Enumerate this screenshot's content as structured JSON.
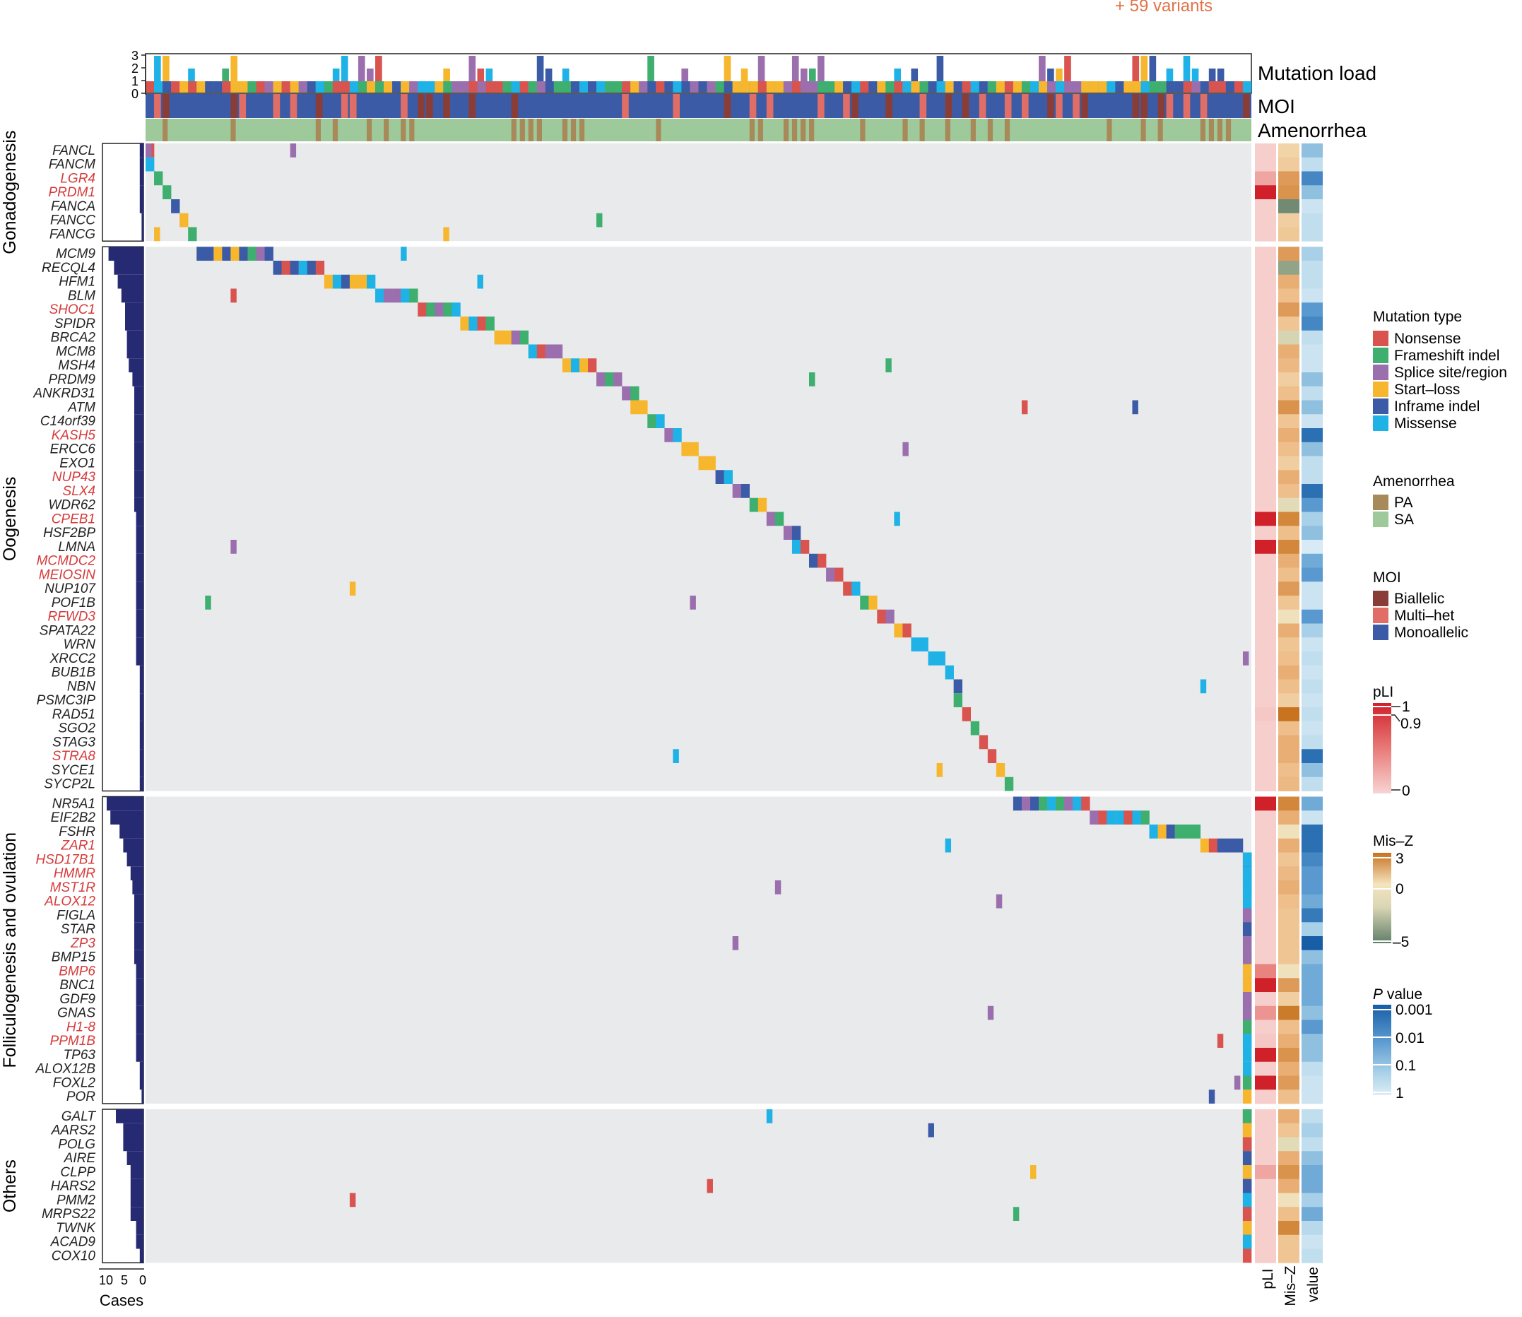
{
  "chart_data": {
    "type": "heatmap",
    "top_note": "+ 59 variants",
    "tracks": {
      "mutation_load": "Mutation load",
      "moi": "MOI",
      "amenorrhea": "Amenorrhea",
      "load_ticks": [
        "3",
        "2",
        "1",
        "0"
      ]
    },
    "cases_axis": {
      "label": "Cases",
      "ticks": [
        "10",
        "5",
        "0"
      ]
    },
    "right_columns": [
      "pLI",
      "Mis–Z",
      "value"
    ],
    "groups": [
      {
        "name": "Gonadogenesis",
        "genes": [
          {
            "name": "FANCL",
            "red": false,
            "cases": 1,
            "pli": 0.1,
            "misz": 0.3,
            "p": 0.05
          },
          {
            "name": "FANCM",
            "red": false,
            "cases": 1,
            "pli": 0.1,
            "misz": 0.6,
            "p": 0.3
          },
          {
            "name": "LGR4",
            "red": true,
            "cases": 1,
            "pli": 0.6,
            "misz": 2.0,
            "p": 0.005
          },
          {
            "name": "PRDM1",
            "red": true,
            "cases": 1,
            "pli": 1.0,
            "misz": 2.2,
            "p": 0.05
          },
          {
            "name": "FANCA",
            "red": false,
            "cases": 1,
            "pli": 0.1,
            "misz": -4.5,
            "p": 0.5
          },
          {
            "name": "FANCC",
            "red": false,
            "cases": 0.5,
            "pli": 0.1,
            "misz": 0.5,
            "p": 0.3
          },
          {
            "name": "FANCG",
            "red": false,
            "cases": 0.5,
            "pli": 0.1,
            "misz": 0.7,
            "p": 0.3
          }
        ]
      },
      {
        "name": "Oogenesis",
        "genes": [
          {
            "name": "MCM9",
            "red": false,
            "cases": 9.5,
            "pli": 0.1,
            "misz": 2.0,
            "p": 0.1
          },
          {
            "name": "RECQL4",
            "red": false,
            "cases": 8,
            "pli": 0.1,
            "misz": -3.5,
            "p": 0.3
          },
          {
            "name": "HFM1",
            "red": false,
            "cases": 7,
            "pli": 0.1,
            "misz": 1.5,
            "p": 0.3
          },
          {
            "name": "BLM",
            "red": false,
            "cases": 6,
            "pli": 0.1,
            "misz": 1.0,
            "p": 0.5
          },
          {
            "name": "SHOC1",
            "red": true,
            "cases": 5,
            "pli": 0.1,
            "misz": 2.0,
            "p": 0.01
          },
          {
            "name": "SPIDR",
            "red": false,
            "cases": 5,
            "pli": 0.1,
            "misz": 0.8,
            "p": 0.005
          },
          {
            "name": "BRCA2",
            "red": false,
            "cases": 4.5,
            "pli": 0.1,
            "misz": -1.5,
            "p": 0.3
          },
          {
            "name": "MCM8",
            "red": false,
            "cases": 4.5,
            "pli": 0.1,
            "misz": 1.5,
            "p": 0.5
          },
          {
            "name": "MSH4",
            "red": false,
            "cases": 4,
            "pli": 0.1,
            "misz": 1.2,
            "p": 0.5
          },
          {
            "name": "PRDM9",
            "red": false,
            "cases": 3,
            "pli": 0.1,
            "misz": 0.5,
            "p": 0.05
          },
          {
            "name": "ANKRD31",
            "red": false,
            "cases": 2.5,
            "pli": 0.1,
            "misz": 1.0,
            "p": 0.3
          },
          {
            "name": "ATM",
            "red": false,
            "cases": 2.5,
            "pli": 0.1,
            "misz": 2.2,
            "p": 0.05
          },
          {
            "name": "C14orf39",
            "red": false,
            "cases": 2.5,
            "pli": 0.1,
            "misz": 0.8,
            "p": 0.5
          },
          {
            "name": "KASH5",
            "red": true,
            "cases": 2.5,
            "pli": 0.1,
            "misz": 1.5,
            "p": 0.002
          },
          {
            "name": "ERCC6",
            "red": false,
            "cases": 2.5,
            "pli": 0.1,
            "misz": 1.0,
            "p": 0.05
          },
          {
            "name": "EXO1",
            "red": false,
            "cases": 2.5,
            "pli": 0.1,
            "misz": 0.5,
            "p": 0.3
          },
          {
            "name": "NUP43",
            "red": true,
            "cases": 2.5,
            "pli": 0.1,
            "misz": 1.5,
            "p": 0.3
          },
          {
            "name": "SLX4",
            "red": true,
            "cases": 2.5,
            "pli": 0.1,
            "misz": 1.0,
            "p": 0.002
          },
          {
            "name": "WDR62",
            "red": false,
            "cases": 2.5,
            "pli": 0.1,
            "misz": -1.0,
            "p": 0.01
          },
          {
            "name": "CPEB1",
            "red": true,
            "cases": 2,
            "pli": 1.0,
            "misz": 2.5,
            "p": 0.1
          },
          {
            "name": "HSF2BP",
            "red": false,
            "cases": 2,
            "pli": 0.1,
            "misz": 1.0,
            "p": 0.05
          },
          {
            "name": "LMNA",
            "red": false,
            "cases": 2,
            "pli": 1.0,
            "misz": 2.5,
            "p": 0.8
          },
          {
            "name": "MCMDC2",
            "red": true,
            "cases": 2,
            "pli": 0.1,
            "misz": 1.5,
            "p": 0.02
          },
          {
            "name": "MEIOSIN",
            "red": true,
            "cases": 2,
            "pli": 0.1,
            "misz": 1.0,
            "p": 0.01
          },
          {
            "name": "NUP107",
            "red": false,
            "cases": 2,
            "pli": 0.1,
            "misz": 2.0,
            "p": 0.5
          },
          {
            "name": "POF1B",
            "red": false,
            "cases": 2,
            "pli": 0.1,
            "misz": 0.8,
            "p": 0.5
          },
          {
            "name": "RFWD3",
            "red": true,
            "cases": 2,
            "pli": 0.1,
            "misz": -0.5,
            "p": 0.01
          },
          {
            "name": "SPATA22",
            "red": false,
            "cases": 2,
            "pli": 0.1,
            "misz": 1.5,
            "p": 0.1
          },
          {
            "name": "WRN",
            "red": false,
            "cases": 2,
            "pli": 0.1,
            "misz": 0.8,
            "p": 0.5
          },
          {
            "name": "XRCC2",
            "red": false,
            "cases": 2,
            "pli": 0.1,
            "misz": 1.0,
            "p": 0.3
          },
          {
            "name": "BUB1B",
            "red": false,
            "cases": 1,
            "pli": 0.1,
            "misz": 1.5,
            "p": 0.5
          },
          {
            "name": "NBN",
            "red": false,
            "cases": 1,
            "pli": 0.1,
            "misz": 1.0,
            "p": 0.3
          },
          {
            "name": "PSMC3IP",
            "red": false,
            "cases": 1,
            "pli": 0.1,
            "misz": 0.5,
            "p": 0.5
          },
          {
            "name": "RAD51",
            "red": false,
            "cases": 1,
            "pli": 0.2,
            "misz": 3.0,
            "p": 0.3
          },
          {
            "name": "SGO2",
            "red": false,
            "cases": 1,
            "pli": 0.1,
            "misz": 1.0,
            "p": 0.5
          },
          {
            "name": "STAG3",
            "red": false,
            "cases": 1,
            "pli": 0.1,
            "misz": 1.5,
            "p": 0.3
          },
          {
            "name": "STRA8",
            "red": true,
            "cases": 1,
            "pli": 0.1,
            "misz": 1.5,
            "p": 0.002
          },
          {
            "name": "SYCE1",
            "red": false,
            "cases": 1,
            "pli": 0.1,
            "misz": 1.0,
            "p": 0.05
          },
          {
            "name": "SYCP2L",
            "red": false,
            "cases": 1,
            "pli": 0.1,
            "misz": 1.2,
            "p": 0.3
          }
        ]
      },
      {
        "name": "Folliculogenesis and ovulation",
        "genes": [
          {
            "name": "NR5A1",
            "red": false,
            "cases": 10,
            "pli": 1.0,
            "misz": 2.5,
            "p": 0.02
          },
          {
            "name": "EIF2B2",
            "red": false,
            "cases": 9,
            "pli": 0.1,
            "misz": 1.5,
            "p": 0.5
          },
          {
            "name": "FSHR",
            "red": false,
            "cases": 6.5,
            "pli": 0.1,
            "misz": -0.5,
            "p": 0.002
          },
          {
            "name": "ZAR1",
            "red": true,
            "cases": 5.5,
            "pli": 0.1,
            "misz": 1.5,
            "p": 0.002
          },
          {
            "name": "HSD17B1",
            "red": true,
            "cases": 4.5,
            "pli": 0.1,
            "misz": 0.8,
            "p": 0.005
          },
          {
            "name": "HMMR",
            "red": true,
            "cases": 3.5,
            "pli": 0.1,
            "misz": 1.2,
            "p": 0.01
          },
          {
            "name": "MST1R",
            "red": true,
            "cases": 3,
            "pli": 0.1,
            "misz": 1.5,
            "p": 0.01
          },
          {
            "name": "ALOX12",
            "red": true,
            "cases": 2.5,
            "pli": 0.1,
            "misz": 1.0,
            "p": 0.02
          },
          {
            "name": "FIGLA",
            "red": false,
            "cases": 2.5,
            "pli": 0.1,
            "misz": 0.8,
            "p": 0.003
          },
          {
            "name": "STAR",
            "red": false,
            "cases": 2.5,
            "pli": 0.1,
            "misz": 0.8,
            "p": 0.1
          },
          {
            "name": "ZP3",
            "red": true,
            "cases": 2.5,
            "pli": 0.1,
            "misz": 0.8,
            "p": 0.001
          },
          {
            "name": "BMP15",
            "red": false,
            "cases": 2.5,
            "pli": 0.1,
            "misz": 0.8,
            "p": 0.05
          },
          {
            "name": "BMP6",
            "red": true,
            "cases": 2,
            "pli": 0.8,
            "misz": -0.5,
            "p": 0.02
          },
          {
            "name": "BNC1",
            "red": false,
            "cases": 2,
            "pli": 1.0,
            "misz": 2.0,
            "p": 0.02
          },
          {
            "name": "GDF9",
            "red": false,
            "cases": 2,
            "pli": 0.1,
            "misz": 0.5,
            "p": 0.02
          },
          {
            "name": "GNAS",
            "red": false,
            "cases": 2,
            "pli": 0.7,
            "misz": 2.8,
            "p": 0.05
          },
          {
            "name": "H1-8",
            "red": true,
            "cases": 2,
            "pli": 0.1,
            "misz": 1.0,
            "p": 0.01
          },
          {
            "name": "PPM1B",
            "red": true,
            "cases": 2,
            "pli": 0.2,
            "misz": 1.5,
            "p": 0.05
          },
          {
            "name": "TP63",
            "red": false,
            "cases": 2,
            "pli": 1.0,
            "misz": 2.2,
            "p": 0.05
          },
          {
            "name": "ALOX12B",
            "red": false,
            "cases": 1,
            "pli": 0.1,
            "misz": 1.5,
            "p": 0.3
          },
          {
            "name": "FOXL2",
            "red": false,
            "cases": 1,
            "pli": 1.0,
            "misz": 2.0,
            "p": 0.5
          },
          {
            "name": "POR",
            "red": false,
            "cases": 0.5,
            "pli": 0.1,
            "misz": 1.0,
            "p": 0.5
          }
        ]
      },
      {
        "name": "Others",
        "genes": [
          {
            "name": "GALT",
            "red": false,
            "cases": 7.5,
            "pli": 0.1,
            "misz": 1.5,
            "p": 0.3
          },
          {
            "name": "AARS2",
            "red": false,
            "cases": 5.5,
            "pli": 0.1,
            "misz": 0.8,
            "p": 0.1
          },
          {
            "name": "POLG",
            "red": false,
            "cases": 5.5,
            "pli": 0.1,
            "misz": -1.0,
            "p": 0.3
          },
          {
            "name": "AIRE",
            "red": false,
            "cases": 4.5,
            "pli": 0.1,
            "misz": 1.5,
            "p": 0.05
          },
          {
            "name": "CLPP",
            "red": false,
            "cases": 3.5,
            "pli": 0.6,
            "misz": 2.2,
            "p": 0.02
          },
          {
            "name": "HARS2",
            "red": false,
            "cases": 3.5,
            "pli": 0.1,
            "misz": 1.5,
            "p": 0.02
          },
          {
            "name": "PMM2",
            "red": false,
            "cases": 3.5,
            "pli": 0.1,
            "misz": -0.5,
            "p": 0.1
          },
          {
            "name": "MRPS22",
            "red": false,
            "cases": 3.5,
            "pli": 0.1,
            "misz": 1.0,
            "p": 0.02
          },
          {
            "name": "TWNK",
            "red": false,
            "cases": 2,
            "pli": 0.1,
            "misz": 2.5,
            "p": 0.2
          },
          {
            "name": "ACAD9",
            "red": false,
            "cases": 2,
            "pli": 0.1,
            "misz": 0.8,
            "p": 0.5
          },
          {
            "name": "COX10",
            "red": false,
            "cases": 1,
            "pli": 0.1,
            "misz": 0.8,
            "p": 0.3
          }
        ]
      }
    ],
    "legends": {
      "mutation_type": {
        "title": "Mutation type",
        "items": [
          {
            "label": "Nonsense",
            "color": "#d9534f"
          },
          {
            "label": "Frameshift indel",
            "color": "#3eaf6e"
          },
          {
            "label": "Splice site/region",
            "color": "#9b6fae"
          },
          {
            "label": "Start–loss",
            "color": "#f6b72e"
          },
          {
            "label": "Inframe indel",
            "color": "#3b5ba6"
          },
          {
            "label": "Missense",
            "color": "#1fb2e6"
          }
        ]
      },
      "amenorrhea": {
        "title": "Amenorrhea",
        "items": [
          {
            "label": "PA",
            "color": "#a88a5a"
          },
          {
            "label": "SA",
            "color": "#9ec99a"
          }
        ]
      },
      "moi": {
        "title": "MOI",
        "items": [
          {
            "label": "Biallelic",
            "color": "#8a3d36"
          },
          {
            "label": "Multi–het",
            "color": "#e06e66"
          },
          {
            "label": "Monoallelic",
            "color": "#3b5ba6"
          }
        ]
      },
      "pli": {
        "title": "pLI",
        "ticks": [
          "1",
          "0.9",
          "0"
        ]
      },
      "misz": {
        "title": "Mis–Z",
        "ticks": [
          "3",
          "0",
          "–5"
        ]
      },
      "pvalue": {
        "title_italic": "P",
        "title_rest": " value",
        "ticks": [
          "0.001",
          "0.01",
          "0.1",
          "1"
        ]
      }
    },
    "colors": {
      "background": "#e9eaec",
      "bar": "#262a72",
      "moi_base": "#3b5ba6",
      "amen_base": "#9ec99a",
      "note": "#e0744a",
      "gene_red": "#d63b3b"
    }
  }
}
